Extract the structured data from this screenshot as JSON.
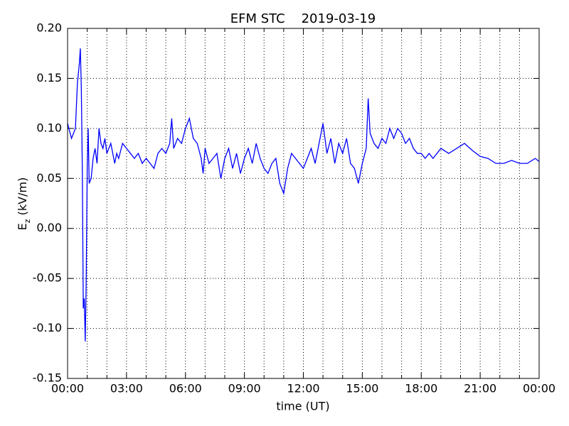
{
  "chart_data": {
    "type": "line",
    "title": "EFM STC    2019-03-19",
    "xlabel": "time (UT)",
    "ylabel": [
      "E",
      "z",
      " (kV/m)"
    ],
    "xlim": [
      0,
      24
    ],
    "xticks": [
      {
        "value": 0,
        "label": "00:00"
      },
      {
        "value": 3,
        "label": "03:00"
      },
      {
        "value": 6,
        "label": "06:00"
      },
      {
        "value": 9,
        "label": "09:00"
      },
      {
        "value": 12,
        "label": "12:00"
      },
      {
        "value": 15,
        "label": "15:00"
      },
      {
        "value": 18,
        "label": "18:00"
      },
      {
        "value": 21,
        "label": "21:00"
      },
      {
        "value": 24,
        "label": "00:00"
      }
    ],
    "xminor": [
      1,
      2,
      4,
      5,
      7,
      8,
      10,
      11,
      13,
      14,
      16,
      17,
      19,
      20,
      22,
      23
    ],
    "ylim": [
      -0.15,
      0.2
    ],
    "yticks": [
      -0.15,
      {
        "value": -0.1,
        "label": "-0.10"
      },
      -0.05,
      {
        "value": 0,
        "label": "0.00"
      },
      0.05,
      {
        "value": 0.1,
        "label": "0.10"
      },
      0.15,
      {
        "value": 0.2,
        "label": "0.20"
      }
    ],
    "grid": true,
    "series": [
      {
        "name": "Ez",
        "color": "#0000ff",
        "x": [
          0,
          0.2,
          0.3,
          0.4,
          0.5,
          0.6,
          0.65,
          0.7,
          0.75,
          0.8,
          0.85,
          0.9,
          0.95,
          1.0,
          1.05,
          1.1,
          1.2,
          1.3,
          1.4,
          1.5,
          1.6,
          1.7,
          1.8,
          1.9,
          2.0,
          2.2,
          2.4,
          2.5,
          2.6,
          2.8,
          3.0,
          3.2,
          3.4,
          3.6,
          3.8,
          4.0,
          4.2,
          4.4,
          4.6,
          4.8,
          5.0,
          5.2,
          5.3,
          5.4,
          5.6,
          5.8,
          6.0,
          6.2,
          6.4,
          6.6,
          6.8,
          6.9,
          7.0,
          7.2,
          7.4,
          7.6,
          7.8,
          8.0,
          8.2,
          8.4,
          8.6,
          8.8,
          9.0,
          9.2,
          9.4,
          9.6,
          9.8,
          10.0,
          10.2,
          10.4,
          10.6,
          10.8,
          11.0,
          11.2,
          11.4,
          11.6,
          11.8,
          12.0,
          12.2,
          12.4,
          12.6,
          12.8,
          13.0,
          13.2,
          13.4,
          13.6,
          13.8,
          14.0,
          14.2,
          14.4,
          14.6,
          14.8,
          15.0,
          15.2,
          15.3,
          15.4,
          15.6,
          15.8,
          16.0,
          16.2,
          16.4,
          16.6,
          16.8,
          17.0,
          17.2,
          17.4,
          17.6,
          17.8,
          18.0,
          18.2,
          18.4,
          18.6,
          18.8,
          19.0,
          19.4,
          19.8,
          20.2,
          20.6,
          21.0,
          21.4,
          21.8,
          22.2,
          22.6,
          23.0,
          23.4,
          23.8,
          24.0
        ],
        "values": [
          0.105,
          0.09,
          0.095,
          0.1,
          0.145,
          0.165,
          0.18,
          0.14,
          0.06,
          -0.08,
          -0.07,
          -0.113,
          -0.05,
          0.06,
          0.1,
          0.045,
          0.05,
          0.07,
          0.08,
          0.065,
          0.1,
          0.085,
          0.08,
          0.09,
          0.075,
          0.085,
          0.065,
          0.075,
          0.07,
          0.085,
          0.08,
          0.075,
          0.07,
          0.075,
          0.065,
          0.07,
          0.065,
          0.06,
          0.075,
          0.08,
          0.075,
          0.085,
          0.11,
          0.08,
          0.09,
          0.085,
          0.1,
          0.11,
          0.09,
          0.085,
          0.07,
          0.055,
          0.08,
          0.065,
          0.07,
          0.075,
          0.05,
          0.07,
          0.08,
          0.06,
          0.075,
          0.055,
          0.07,
          0.08,
          0.065,
          0.085,
          0.07,
          0.06,
          0.055,
          0.065,
          0.07,
          0.045,
          0.035,
          0.06,
          0.075,
          0.07,
          0.065,
          0.06,
          0.07,
          0.08,
          0.065,
          0.085,
          0.105,
          0.075,
          0.09,
          0.065,
          0.085,
          0.075,
          0.09,
          0.065,
          0.06,
          0.045,
          0.065,
          0.08,
          0.13,
          0.095,
          0.085,
          0.08,
          0.09,
          0.085,
          0.1,
          0.09,
          0.1,
          0.095,
          0.085,
          0.09,
          0.08,
          0.075,
          0.075,
          0.07,
          0.075,
          0.07,
          0.075,
          0.08,
          0.075,
          0.08,
          0.085,
          0.078,
          0.072,
          0.07,
          0.065,
          0.065,
          0.068,
          0.065,
          0.065,
          0.07,
          0.067
        ]
      }
    ]
  }
}
